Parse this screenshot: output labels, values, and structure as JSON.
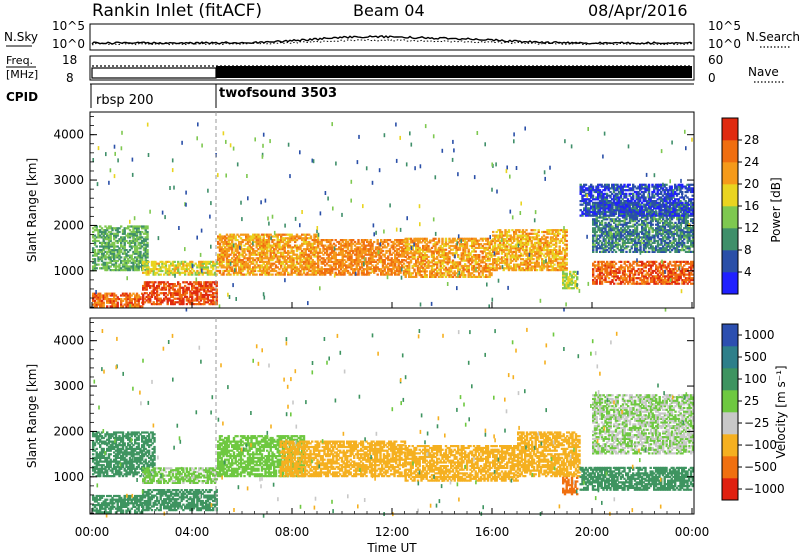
{
  "header": {
    "station": "Rankin Inlet (fitACF)",
    "beam": "Beam 04",
    "date": "08/Apr/2016"
  },
  "noise_panel": {
    "left_label": "N.Sky",
    "right_label": "N.Search",
    "left_ticks": [
      "10^5",
      "10^0"
    ],
    "right_ticks": [
      "10^5",
      "10^0"
    ]
  },
  "freq_panel": {
    "left_label_1": "Freq.",
    "left_label_2": "[MHz]",
    "right_label": "Nave",
    "left_ticks": [
      "18",
      "8"
    ],
    "right_ticks": [
      "60",
      "0"
    ]
  },
  "cpid_panel": {
    "label": "CPID",
    "modes": [
      {
        "name": "rbsp 200",
        "start_hour": 0
      },
      {
        "name": "twofsound 3503",
        "start_hour": 5
      }
    ]
  },
  "chart_data": [
    {
      "type": "heatmap",
      "name": "power",
      "xlabel": "",
      "ylabel": "Slant Range [km]",
      "x_range_hours": [
        0,
        24
      ],
      "ylim": [
        180,
        4500
      ],
      "yticks": [
        "1000",
        "2000",
        "3000",
        "4000"
      ],
      "colorbar": {
        "label": "Power [dB]",
        "ticks": [
          "4",
          "8",
          "12",
          "16",
          "20",
          "24",
          "28"
        ],
        "colors": [
          "#2020ff",
          "#2a4fa8",
          "#3f8f6a",
          "#7ec850",
          "#e9d420",
          "#f59a1a",
          "#f06e10",
          "#e02a10"
        ]
      },
      "bands": [
        {
          "t": [
            0.0,
            2.0
          ],
          "r": [
            200,
            500
          ],
          "db": 26
        },
        {
          "t": [
            2.0,
            5.0
          ],
          "r": [
            250,
            750
          ],
          "db": 28
        },
        {
          "t": [
            0.0,
            2.2
          ],
          "r": [
            1000,
            2000
          ],
          "db": 12
        },
        {
          "t": [
            2.0,
            5.0
          ],
          "r": [
            900,
            1200
          ],
          "db": 18
        },
        {
          "t": [
            5.0,
            9.0
          ],
          "r": [
            900,
            1800
          ],
          "db": 22
        },
        {
          "t": [
            9.0,
            12.5
          ],
          "r": [
            900,
            1700
          ],
          "db": 24
        },
        {
          "t": [
            12.5,
            16.0
          ],
          "r": [
            850,
            1700
          ],
          "db": 22
        },
        {
          "t": [
            16.0,
            19.0
          ],
          "r": [
            1000,
            1900
          ],
          "db": 21
        },
        {
          "t": [
            18.8,
            19.4
          ],
          "r": [
            600,
            1000
          ],
          "db": 16
        },
        {
          "t": [
            20.0,
            24.0
          ],
          "r": [
            700,
            1200
          ],
          "db": 27
        },
        {
          "t": [
            20.0,
            24.0
          ],
          "r": [
            1400,
            2500
          ],
          "db": 9
        },
        {
          "t": [
            19.5,
            24.0
          ],
          "r": [
            2200,
            2900
          ],
          "db": 5
        }
      ]
    },
    {
      "type": "heatmap",
      "name": "velocity",
      "xlabel": "Time UT",
      "ylabel": "Slant Range [km]",
      "x_range_hours": [
        0,
        24
      ],
      "xticks": [
        "00:00",
        "04:00",
        "08:00",
        "12:00",
        "16:00",
        "20:00",
        "00:00"
      ],
      "ylim": [
        180,
        4500
      ],
      "yticks": [
        "1000",
        "2000",
        "3000",
        "4000"
      ],
      "colorbar": {
        "label": "Velocity [m s⁻¹]",
        "ticks": [
          "1000",
          "500",
          "100",
          "25",
          "−25",
          "−100",
          "−500",
          "−1000"
        ],
        "colors": [
          "#2c4fb0",
          "#2e7f8a",
          "#3e9460",
          "#6ec840",
          "#c8c8c8",
          "#f5b020",
          "#f07010",
          "#e02010"
        ]
      },
      "bands": [
        {
          "t": [
            0.0,
            2.0
          ],
          "r": [
            200,
            600
          ],
          "v": 200
        },
        {
          "t": [
            2.0,
            5.0
          ],
          "r": [
            250,
            700
          ],
          "v": 150
        },
        {
          "t": [
            0.0,
            2.5
          ],
          "r": [
            1000,
            2000
          ],
          "v": 200
        },
        {
          "t": [
            2.0,
            5.0
          ],
          "r": [
            850,
            1200
          ],
          "v": 20
        },
        {
          "t": [
            5.0,
            8.5
          ],
          "r": [
            1000,
            1900
          ],
          "v": 30
        },
        {
          "t": [
            7.5,
            12.5
          ],
          "r": [
            1000,
            1800
          ],
          "v": -150
        },
        {
          "t": [
            12.5,
            17.0
          ],
          "r": [
            900,
            1700
          ],
          "v": -150
        },
        {
          "t": [
            17.0,
            19.5
          ],
          "r": [
            1000,
            2000
          ],
          "v": -120
        },
        {
          "t": [
            18.8,
            19.4
          ],
          "r": [
            600,
            1000
          ],
          "v": -500
        },
        {
          "t": [
            19.5,
            24.0
          ],
          "r": [
            700,
            1200
          ],
          "v": 150
        },
        {
          "t": [
            20.0,
            24.0
          ],
          "r": [
            1500,
            2800
          ],
          "v": 0
        }
      ]
    }
  ]
}
